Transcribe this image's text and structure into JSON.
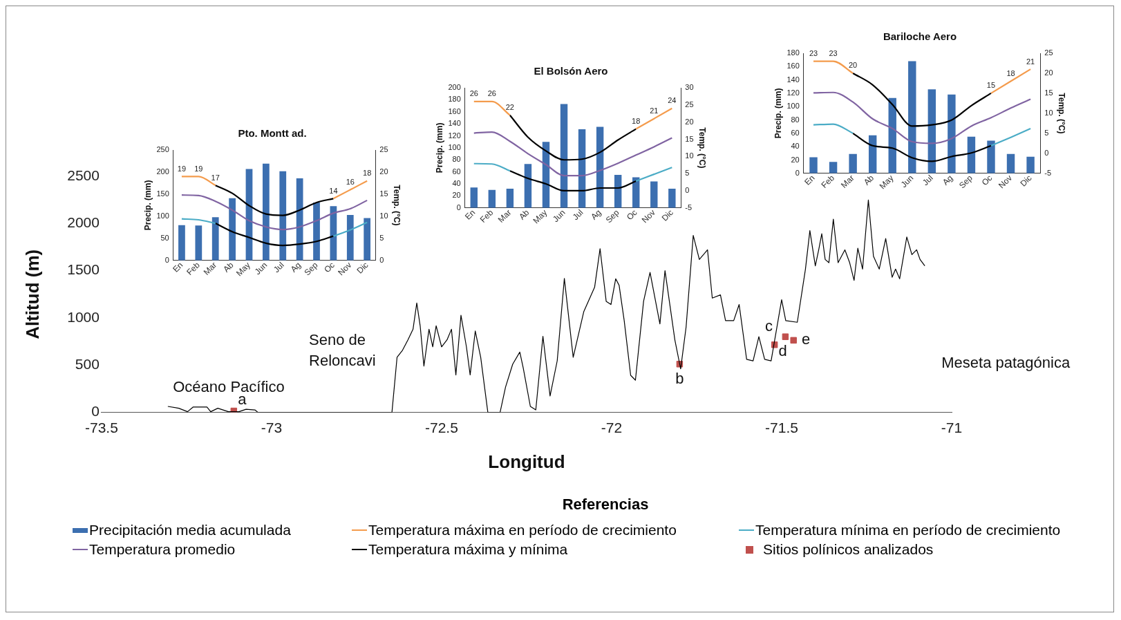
{
  "chart_data": [
    {
      "type": "line",
      "xlabel": "Longitud",
      "ylabel": "Altitud (m)",
      "xlim": [
        -73.5,
        -71
      ],
      "xticks": [
        -73.5,
        -73,
        -72.5,
        -72,
        -71.5,
        -71
      ],
      "ylim": [
        0,
        2500
      ],
      "yticks": [
        0,
        500,
        1000,
        1500,
        2000,
        2500
      ],
      "legend": "bottom",
      "legend_title": "Referencias",
      "series": [
        {
          "color": "#000000",
          "marker": "none",
          "x": [
            -73.305,
            -73.273,
            -73.247,
            -73.231,
            -73.19,
            -73.179,
            -73.158,
            -73.127,
            -73.096,
            -73.075,
            -73.049,
            -73.04,
            -72.646,
            -72.631,
            -72.615,
            -72.599,
            -72.584,
            -72.573,
            -72.563,
            -72.552,
            -72.537,
            -72.526,
            -72.516,
            -72.5,
            -72.484,
            -72.471,
            -72.458,
            -72.443,
            -72.427,
            -72.416,
            -72.401,
            -72.385,
            -72.364,
            -72.328,
            -72.312,
            -72.291,
            -72.27,
            -72.26,
            -72.239,
            -72.223,
            -72.202,
            -72.181,
            -72.16,
            -72.139,
            -72.113,
            -72.082,
            -72.05,
            -72.034,
            -72.016,
            -72.002,
            -71.988,
            -71.978,
            -71.963,
            -71.944,
            -71.93,
            -71.906,
            -71.887,
            -71.858,
            -71.843,
            -71.814,
            -71.797,
            -71.781,
            -71.76,
            -71.742,
            -71.718,
            -71.704,
            -71.68,
            -71.665,
            -71.641,
            -71.625,
            -71.603,
            -71.584,
            -71.567,
            -71.55,
            -71.531,
            -71.5,
            -71.488,
            -71.454,
            -71.43,
            -71.417,
            -71.401,
            -71.391,
            -71.382,
            -71.372,
            -71.361,
            -71.348,
            -71.334,
            -71.314,
            -71.3,
            -71.287,
            -71.276,
            -71.262,
            -71.245,
            -71.23,
            -71.213,
            -71.194,
            -71.175,
            -71.165,
            -71.153,
            -71.132,
            -71.117,
            -71.103,
            -71.093,
            -71.079
          ],
          "values": [
            63,
            44,
            7,
            56,
            56,
            7,
            44,
            7,
            7,
            33,
            26,
            0,
            0,
            583,
            657,
            768,
            880,
            1158,
            917,
            490,
            880,
            694,
            917,
            694,
            768,
            880,
            397,
            1028,
            694,
            397,
            861,
            583,
            0,
            0,
            267,
            509,
            638,
            472,
            63,
            26,
            805,
            174,
            546,
            1418,
            583,
            1065,
            1325,
            1733,
            1176,
            1142,
            1414,
            1346,
            971,
            392,
            341,
            1176,
            1482,
            937,
            1500,
            767,
            460,
            903,
            1874,
            1619,
            1721,
            1210,
            1244,
            971,
            971,
            1142,
            562,
            545,
            801,
            562,
            545,
            1193,
            971,
            954,
            1517,
            1925,
            1551,
            1721,
            1891,
            1619,
            1585,
            2045,
            1585,
            1721,
            1585,
            1397,
            1738,
            1517,
            2249,
            1653,
            1517,
            1840,
            1431,
            1517,
            1414,
            1857,
            1670,
            1721,
            1619,
            1551
          ]
        },
        {
          "name": "Sitios polínicos analizados",
          "type": "scatter",
          "color": "#c0504d",
          "marker": "square",
          "x": [
            -73.111,
            -71.8,
            -71.489,
            -71.521,
            -71.465
          ],
          "values": [
            15,
            511,
            801,
            716,
            763
          ]
        }
      ],
      "annotations": [
        {
          "text": "a",
          "x": -73.111,
          "y": 15
        },
        {
          "text": "b",
          "x": -71.8,
          "y": 511
        },
        {
          "text": "c",
          "x": -71.489,
          "y": 801
        },
        {
          "text": "d",
          "x": -71.521,
          "y": 716
        },
        {
          "text": "e",
          "x": -71.465,
          "y": 763
        },
        "Océano Pacífico",
        "Seno de Reloncavi",
        "Meseta patagónica"
      ]
    },
    {
      "type": "bar",
      "legend": "bottom",
      "title": "Pto. Montt ad.",
      "ylabel": "Precip. (mm)",
      "y2label": "Temp. (°C)",
      "categories": [
        "En",
        "Feb",
        "Mar",
        "Ab",
        "May",
        "Jun",
        "Jul",
        "Ag",
        "Sep",
        "Oc",
        "Nov",
        "Dic"
      ],
      "ylim": [
        0,
        250
      ],
      "yticks": [
        0,
        50,
        100,
        150,
        200,
        250
      ],
      "y2lim": [
        0,
        25
      ],
      "y2ticks": [
        0,
        5,
        10,
        15,
        20,
        25
      ],
      "series": [
        {
          "name": "Precipitación media acumulada",
          "color": "#3c6fb0",
          "values": [
            80,
            79,
            98,
            141,
            207,
            219,
            202,
            186,
            131,
            123,
            103,
            96
          ]
        },
        {
          "name": "Temperatura máxima en período de crecimiento",
          "type": "line",
          "axis": "y2",
          "color": "#f49b4c",
          "values": [
            19,
            19,
            17,
            null,
            null,
            null,
            null,
            null,
            null,
            14,
            16,
            18
          ],
          "value_labels": [
            "19",
            "19",
            "17",
            null,
            null,
            null,
            null,
            null,
            null,
            "14",
            "16",
            "18"
          ]
        },
        {
          "name": "Temperatura mínima en período de crecimiento",
          "type": "line",
          "axis": "y2",
          "color": "#4bacc6",
          "values": [
            9.4,
            9.2,
            8.4,
            null,
            null,
            null,
            null,
            null,
            null,
            5.5,
            6.9,
            8.6
          ]
        },
        {
          "name": "Temperatura promedio",
          "type": "line",
          "axis": "y2",
          "color": "#8064a2",
          "values": [
            14.8,
            14.7,
            13.4,
            11.4,
            9.0,
            7.6,
            7.0,
            7.6,
            9.0,
            10.7,
            11.7,
            13.6
          ]
        },
        {
          "name": "Temperatura máxima y mínima",
          "type": "line",
          "axis": "y2",
          "color": "#000000",
          "values": [
            null,
            null,
            17,
            15.2,
            12.4,
            10.5,
            10.2,
            11.4,
            13.1,
            14,
            null,
            null
          ]
        },
        {
          "type": "line",
          "axis": "y2",
          "color": "#000000",
          "values": [
            null,
            null,
            8.4,
            6.5,
            5.2,
            3.9,
            3.4,
            3.7,
            4.3,
            5.5,
            null,
            null
          ]
        }
      ]
    },
    {
      "type": "bar",
      "legend": "bottom",
      "title": "El Bolsón Aero",
      "ylabel": "Precip. (mm)",
      "y2label": "Temp. (°C)",
      "categories": [
        "En",
        "Feb",
        "Mar",
        "Ab",
        "May",
        "Jun",
        "Jul",
        "Ag",
        "Sep",
        "Oc",
        "Nov",
        "Dic"
      ],
      "ylim": [
        0,
        200
      ],
      "yticks": [
        0,
        20,
        40,
        60,
        80,
        100,
        120,
        140,
        160,
        180,
        200
      ],
      "y2lim": [
        -5,
        30
      ],
      "y2ticks": [
        -5,
        0,
        5,
        10,
        15,
        20,
        25,
        30
      ],
      "series": [
        {
          "name": "Precipitación media acumulada",
          "color": "#3c6fb0",
          "values": [
            34,
            30,
            32,
            73,
            110,
            173,
            131,
            135,
            55,
            51,
            44,
            32
          ]
        },
        {
          "name": "Temperatura máxima en período de crecimiento",
          "type": "line",
          "axis": "y2",
          "color": "#f49b4c",
          "values": [
            26,
            26,
            22,
            null,
            null,
            null,
            null,
            null,
            null,
            18,
            21,
            24
          ],
          "value_labels": [
            "26",
            "26",
            "22",
            null,
            null,
            null,
            null,
            null,
            null,
            "18",
            "21",
            "24"
          ]
        },
        {
          "name": "Temperatura mínima en período de crecimiento",
          "type": "line",
          "axis": "y2",
          "color": "#4bacc6",
          "values": [
            7.9,
            7.8,
            5.8,
            null,
            null,
            null,
            null,
            null,
            null,
            2.8,
            4.8,
            6.8
          ]
        },
        {
          "name": "Temperatura promedio",
          "type": "line",
          "axis": "y2",
          "color": "#8064a2",
          "values": [
            16.8,
            17.1,
            14.4,
            10.8,
            7.6,
            4.4,
            4.4,
            5.9,
            8.0,
            10.4,
            12.8,
            15.4
          ]
        },
        {
          "name": "Temperatura máxima y mínima",
          "type": "line",
          "axis": "y2",
          "color": "#000000",
          "values": [
            null,
            null,
            22,
            15.6,
            11.6,
            9.0,
            9.2,
            11.2,
            14.8,
            18,
            null,
            null
          ]
        },
        {
          "type": "line",
          "axis": "y2",
          "color": "#000000",
          "values": [
            null,
            null,
            5.8,
            3.6,
            2.0,
            0,
            0,
            0.8,
            0.8,
            2.8,
            null,
            null
          ]
        }
      ]
    },
    {
      "type": "bar",
      "legend": "bottom",
      "title": "Bariloche Aero",
      "ylabel": "Precip. (mm)",
      "y2label": "Temp. (°C)",
      "categories": [
        "En",
        "Feb",
        "Mar",
        "Ab",
        "May",
        "Jun",
        "Jul",
        "Ag",
        "Sep",
        "Oc",
        "Nov",
        "Dic"
      ],
      "ylim": [
        0,
        180
      ],
      "yticks": [
        0,
        20,
        40,
        60,
        80,
        100,
        120,
        140,
        160,
        180
      ],
      "y2lim": [
        -5,
        25
      ],
      "y2ticks": [
        -5,
        0,
        5,
        10,
        15,
        20,
        25
      ],
      "series": [
        {
          "name": "Precipitación media acumulada",
          "color": "#3c6fb0",
          "values": [
            24,
            17,
            29,
            57,
            113,
            168,
            126,
            118,
            55,
            49,
            29,
            25
          ]
        },
        {
          "name": "Temperatura máxima en período de crecimiento",
          "type": "line",
          "axis": "y2",
          "color": "#f49b4c",
          "values": [
            23,
            23,
            20,
            null,
            null,
            null,
            null,
            null,
            null,
            15,
            18,
            21
          ],
          "value_labels": [
            "23",
            "23",
            "20",
            null,
            null,
            null,
            null,
            null,
            null,
            "15",
            "18",
            "21"
          ]
        },
        {
          "name": "Temperatura mínima en período de crecimiento",
          "type": "line",
          "axis": "y2",
          "color": "#4bacc6",
          "values": [
            7.1,
            7.3,
            5.0,
            null,
            null,
            null,
            null,
            null,
            null,
            1.9,
            4.0,
            6.2
          ]
        },
        {
          "name": "Temperatura promedio",
          "type": "line",
          "axis": "y2",
          "color": "#8064a2",
          "values": [
            15.1,
            15.2,
            12.8,
            8.6,
            6.2,
            2.9,
            2.5,
            3.7,
            6.8,
            8.9,
            11.3,
            13.5
          ]
        },
        {
          "name": "Temperatura máxima y mínima",
          "type": "line",
          "axis": "y2",
          "color": "#000000",
          "values": [
            null,
            null,
            20,
            17.1,
            12.2,
            6.8,
            7.1,
            8.3,
            11.9,
            15,
            null,
            null
          ]
        },
        {
          "type": "line",
          "axis": "y2",
          "color": "#000000",
          "values": [
            null,
            null,
            5.0,
            1.9,
            1.3,
            -1.1,
            -2.0,
            -0.8,
            0.1,
            1.9,
            null,
            null
          ]
        }
      ]
    }
  ]
}
